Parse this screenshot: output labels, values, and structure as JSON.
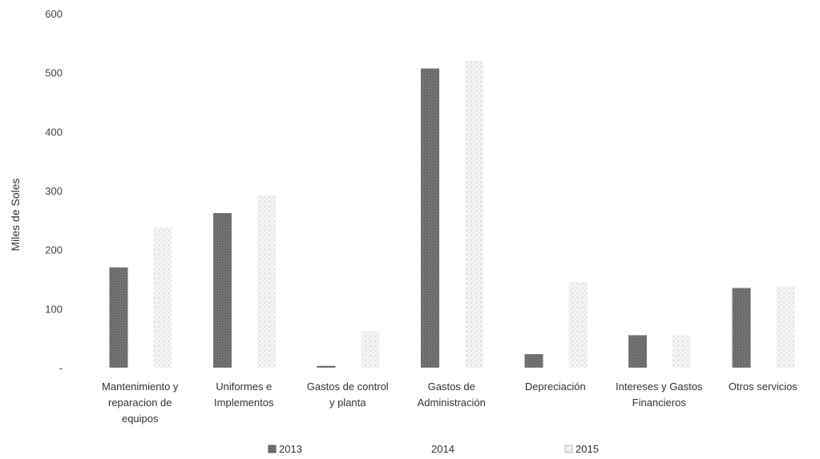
{
  "chart_data": {
    "type": "bar",
    "title": "",
    "xlabel": "",
    "ylabel": "Miles de Soles",
    "ylim": [
      0,
      600
    ],
    "yticks": [
      0,
      100,
      200,
      300,
      400,
      500,
      600
    ],
    "ytick_labels": [
      "-",
      "100",
      "200",
      "300",
      "400",
      "500",
      "600"
    ],
    "grid": false,
    "legend_position": "bottom",
    "categories": [
      [
        "Mantenimiento y",
        "reparacion de",
        "equipos"
      ],
      [
        "Uniformes e",
        "Implementos"
      ],
      [
        "Gastos de control",
        "y planta"
      ],
      [
        "Gastos de",
        "Administración"
      ],
      [
        "Depreciación"
      ],
      [
        "Intereses y Gastos",
        "Financieros"
      ],
      [
        "Otros servicios"
      ]
    ],
    "series": [
      {
        "name": "2013",
        "color": "#7a7a7a",
        "values": [
          170,
          262,
          3,
          507,
          23,
          55,
          135
        ]
      },
      {
        "name": "2014",
        "color": "#ffffff",
        "values": [
          0,
          0,
          0,
          0,
          0,
          0,
          0
        ]
      },
      {
        "name": "2015",
        "color": "#e4e4e4",
        "values": [
          238,
          292,
          62,
          520,
          145,
          55,
          138
        ]
      }
    ]
  }
}
